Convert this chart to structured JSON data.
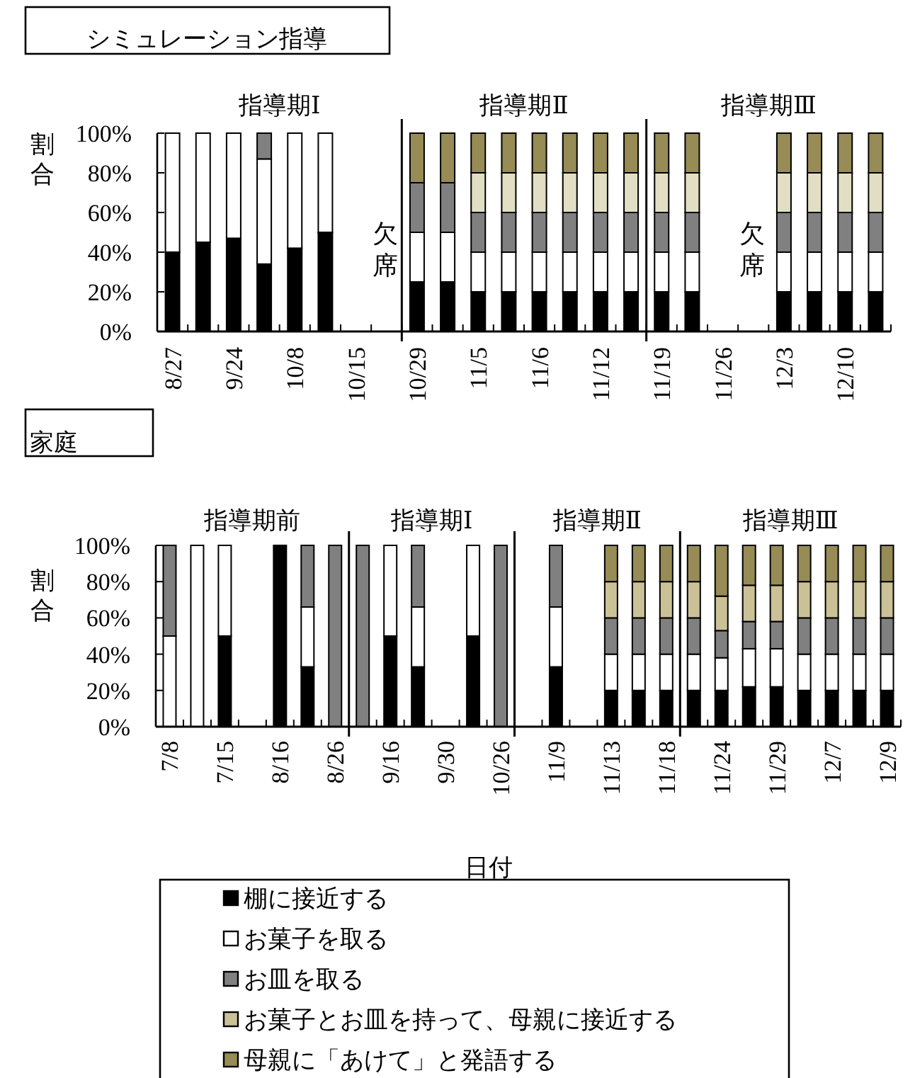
{
  "chart_data": [
    {
      "type": "bar",
      "title": "シミュレーション指導",
      "ylabel": "割合",
      "stacked": true,
      "ylim": [
        0,
        100
      ],
      "yticks": [
        {
          "value": 0,
          "label": "0%"
        },
        {
          "value": 20,
          "label": "20%"
        },
        {
          "value": 40,
          "label": "40%"
        },
        {
          "value": 60,
          "label": "60%"
        },
        {
          "value": 80,
          "label": "80%"
        },
        {
          "value": 100,
          "label": "100%"
        }
      ],
      "categories": [
        "8/27",
        null,
        "9/24",
        null,
        "10/8",
        null,
        "10/15",
        null,
        "10/29",
        null,
        "11/5",
        null,
        "11/6",
        null,
        "11/12",
        null,
        "11/19",
        null,
        "11/26",
        null,
        "12/3",
        null,
        "12/10",
        null
      ],
      "series": [
        {
          "color": "#000000",
          "values": [
            40,
            45,
            47,
            34,
            42,
            50,
            null,
            null,
            25,
            25,
            20,
            20,
            20,
            20,
            20,
            20,
            20,
            20,
            null,
            null,
            20,
            20,
            20,
            20
          ]
        },
        {
          "color": "#ffffff",
          "values": [
            60,
            55,
            53,
            53,
            58,
            50,
            null,
            null,
            25,
            25,
            20,
            20,
            20,
            20,
            20,
            20,
            20,
            20,
            null,
            null,
            20,
            20,
            20,
            20
          ]
        },
        {
          "color": "#808080",
          "values": [
            0,
            0,
            0,
            13,
            0,
            0,
            null,
            null,
            25,
            25,
            20,
            20,
            20,
            20,
            20,
            20,
            20,
            20,
            null,
            null,
            20,
            20,
            20,
            20
          ]
        },
        {
          "color": "#e2dec4",
          "values": [
            0,
            0,
            0,
            0,
            0,
            0,
            null,
            null,
            0,
            0,
            20,
            20,
            20,
            20,
            20,
            20,
            20,
            20,
            null,
            null,
            20,
            20,
            20,
            20
          ]
        },
        {
          "color": "#978b56",
          "values": [
            0,
            0,
            0,
            0,
            0,
            0,
            null,
            null,
            25,
            25,
            20,
            20,
            20,
            20,
            20,
            20,
            20,
            20,
            null,
            null,
            20,
            20,
            20,
            20
          ]
        }
      ],
      "annotations": [
        "指導期Ⅰ",
        "指導期Ⅱ",
        "指導期Ⅲ",
        "欠席",
        "欠席"
      ]
    },
    {
      "type": "bar",
      "title": "家庭",
      "ylabel": "割合",
      "xlabel": "日付",
      "stacked": true,
      "ylim": [
        0,
        100
      ],
      "legend": "bottom",
      "yticks": [
        {
          "value": 0,
          "label": "0%"
        },
        {
          "value": 20,
          "label": "20%"
        },
        {
          "value": 40,
          "label": "40%"
        },
        {
          "value": 60,
          "label": "60%"
        },
        {
          "value": 80,
          "label": "80%"
        },
        {
          "value": 100,
          "label": "100%"
        }
      ],
      "categories": [
        "7/8",
        null,
        "7/15",
        null,
        "8/16",
        null,
        "8/26",
        null,
        "9/16",
        null,
        "9/30",
        null,
        "10/26",
        null,
        "11/9",
        null,
        "11/13",
        null,
        "11/18",
        null,
        "11/24",
        null,
        "11/29",
        null,
        "12/7",
        null,
        "12/9"
      ],
      "series": [
        {
          "name": "棚に接近する",
          "color": "#000000",
          "values": [
            0,
            0,
            50,
            null,
            100,
            33,
            0,
            0,
            50,
            33,
            null,
            50,
            0,
            null,
            33,
            null,
            20,
            20,
            20,
            20,
            20,
            22,
            22,
            20,
            20,
            20,
            20
          ]
        },
        {
          "name": "お菓子を取る",
          "color": "#ffffff",
          "values": [
            50,
            100,
            50,
            null,
            0,
            33,
            0,
            0,
            50,
            33,
            null,
            50,
            0,
            null,
            33,
            null,
            20,
            20,
            20,
            20,
            18,
            21,
            21,
            20,
            20,
            20,
            20
          ]
        },
        {
          "name": "お皿を取る",
          "color": "#808080",
          "values": [
            50,
            0,
            0,
            null,
            0,
            34,
            100,
            100,
            0,
            34,
            null,
            0,
            100,
            null,
            34,
            null,
            20,
            20,
            20,
            20,
            15,
            15,
            15,
            20,
            20,
            20,
            20
          ]
        },
        {
          "name": "お菓子とお皿を持って、母親に接近する",
          "color": "#cbc197",
          "values": [
            0,
            0,
            0,
            null,
            0,
            0,
            0,
            0,
            0,
            0,
            null,
            0,
            0,
            null,
            0,
            null,
            20,
            20,
            20,
            20,
            19,
            20,
            20,
            20,
            20,
            20,
            20
          ]
        },
        {
          "name": "母親に「あけて」と発語する",
          "color": "#978b56",
          "values": [
            0,
            0,
            0,
            null,
            0,
            0,
            0,
            0,
            0,
            0,
            null,
            0,
            0,
            null,
            0,
            null,
            20,
            20,
            20,
            20,
            28,
            22,
            22,
            20,
            20,
            20,
            20
          ]
        }
      ],
      "annotations": [
        "指導期前",
        "指導期Ⅰ",
        "指導期Ⅱ",
        "指導期Ⅲ"
      ]
    }
  ]
}
